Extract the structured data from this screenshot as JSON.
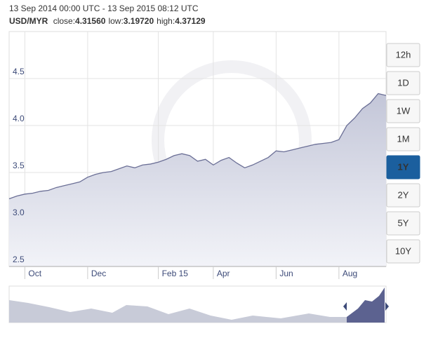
{
  "chart_data": {
    "type": "area",
    "title": "13 Sep 2014 00:00 UTC - 13 Sep 2015 08:12 UTC",
    "subtitle": {
      "pair": "USD/MYR",
      "stats": [
        {
          "label": "close:",
          "value": "4.31560"
        },
        {
          "label": "low:",
          "value": "3.19720"
        },
        {
          "label": "high:",
          "value": "4.37129"
        }
      ]
    },
    "categories": [
      null,
      null,
      "Oct",
      null,
      null,
      null,
      null,
      null,
      null,
      null,
      "Dec",
      null,
      null,
      null,
      null,
      null,
      null,
      null,
      null,
      "Feb 15",
      null,
      null,
      null,
      null,
      null,
      null,
      "Apr",
      null,
      null,
      null,
      null,
      null,
      null,
      null,
      "Jun",
      null,
      null,
      null,
      null,
      null,
      null,
      null,
      "Aug",
      null,
      null,
      null,
      null,
      null,
      null
    ],
    "series": [
      {
        "name": "USD/MYR",
        "color": "#6b6f96",
        "values": [
          3.22,
          3.25,
          3.27,
          3.28,
          3.3,
          3.31,
          3.34,
          3.36,
          3.38,
          3.4,
          3.45,
          3.48,
          3.5,
          3.51,
          3.54,
          3.57,
          3.55,
          3.58,
          3.59,
          3.61,
          3.64,
          3.68,
          3.7,
          3.68,
          3.62,
          3.64,
          3.58,
          3.63,
          3.66,
          3.6,
          3.55,
          3.58,
          3.62,
          3.66,
          3.73,
          3.72,
          3.74,
          3.76,
          3.78,
          3.8,
          3.81,
          3.82,
          3.85,
          4.0,
          4.08,
          4.18,
          4.24,
          4.34,
          4.32
        ]
      }
    ],
    "ylim": [
      2.5,
      5.0
    ],
    "yticks": [
      2.5,
      {
        "value": 3.0,
        "label": "3.0"
      },
      3.5,
      {
        "value": 4.0,
        "label": "4.0"
      },
      4.5
    ],
    "grid": true,
    "range_buttons": [
      "12h",
      "1D",
      "1W",
      "1M",
      "1Y",
      "2Y",
      "5Y",
      "10Y"
    ],
    "active_range": "1Y"
  }
}
